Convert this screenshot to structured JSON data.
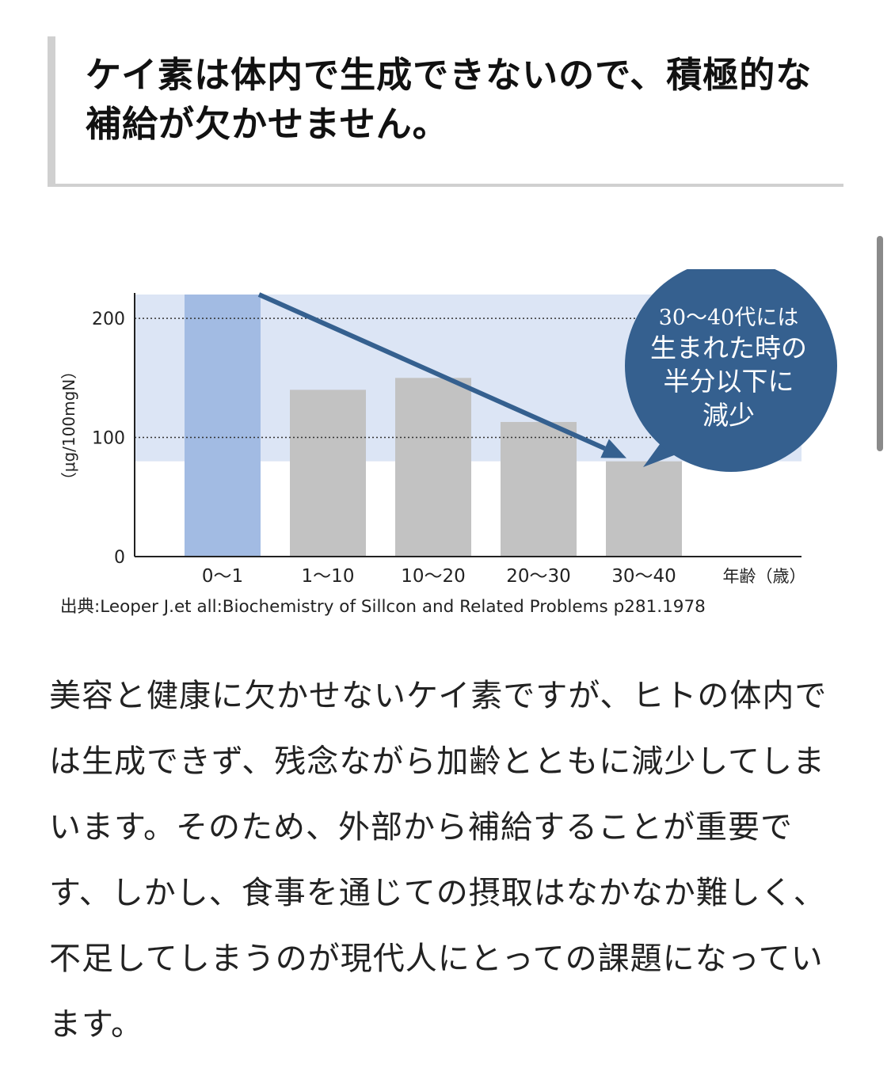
{
  "article": {
    "heading": "ケイ素は体内で生成できないので、積極的な補給が欠かせません。",
    "body": "美容と健康に欠かせないケイ素ですが、ヒトの体内では生成できず、残念ながら加齢とともに減少してしまいます。そのため、外部から補給することが重要です、しかし、食事を通じての摂取はなかなか難しく、不足してしまうのが現代人にとっての課題になっています。"
  },
  "chart_data": {
    "type": "bar",
    "categories": [
      "0〜1",
      "1〜10",
      "10〜20",
      "20〜30",
      "30〜40"
    ],
    "values": [
      220,
      140,
      150,
      113,
      80
    ],
    "ylabel": "（μg/100mgN）",
    "xlabel": "年齢（歳）",
    "yticks": [
      0,
      100,
      200
    ],
    "ylim": [
      0,
      220
    ],
    "gridlines": [
      100,
      200
    ],
    "grid_style": "dotted",
    "highlight_band": [
      80,
      220
    ],
    "highlight_category": "0〜1",
    "colors": {
      "highlight_bar": "#a2bbe3",
      "bar": "#c2c2c2",
      "band": "#dce5f5",
      "arrow": "#35608f",
      "bubble": "#35608f",
      "bubble_text": "#ffffff",
      "axis": "#222222"
    },
    "annotation": [
      "30〜40代には",
      "生まれた時の",
      "半分以下に",
      "減少"
    ],
    "source": "出典:Leoper J.et all:Biochemistry of Sillcon and Related Problems p281.1978"
  }
}
